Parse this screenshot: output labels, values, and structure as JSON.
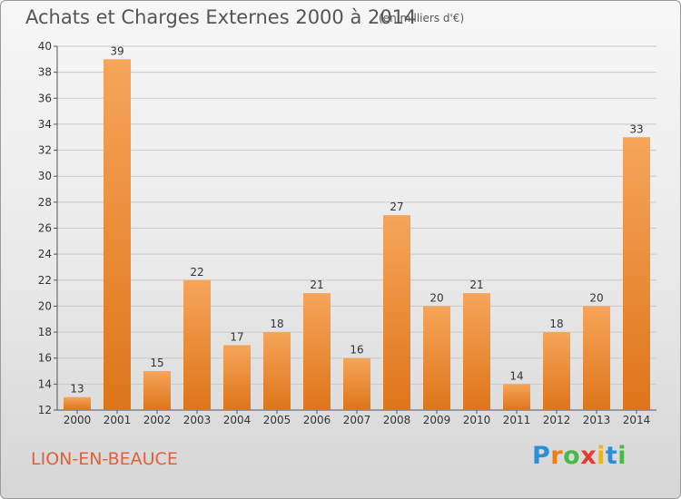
{
  "title": "Achats et Charges Externes 2000 à 2014",
  "subtitle": "(en milliers d'€)",
  "commune": "LION-EN-BEAUCE",
  "logo": {
    "letters": [
      "P",
      "r",
      "o",
      "x",
      "i",
      "t",
      "i"
    ],
    "colors": [
      "#2a8fd8",
      "#f07d1a",
      "#4cb848",
      "#e63a2e",
      "#f2b705",
      "#2a8fd8",
      "#4cb848"
    ]
  },
  "colors": {
    "bar_top": "#f6a55a",
    "bar_bottom": "#de7519",
    "title_text": "#555555",
    "commune_text": "#e0603a"
  },
  "chart_data": {
    "type": "bar",
    "title": "Achats et Charges Externes 2000 à 2014",
    "subtitle": "(en milliers d'€)",
    "categories": [
      "2000",
      "2001",
      "2002",
      "2003",
      "2004",
      "2005",
      "2006",
      "2007",
      "2008",
      "2009",
      "2010",
      "2011",
      "2012",
      "2013",
      "2014"
    ],
    "values": [
      13,
      39,
      15,
      22,
      17,
      18,
      21,
      16,
      27,
      20,
      21,
      14,
      18,
      20,
      33
    ],
    "ylim": [
      12,
      40
    ],
    "yticks": [
      12,
      14,
      16,
      18,
      20,
      22,
      24,
      26,
      28,
      30,
      32,
      34,
      36,
      38,
      40
    ],
    "grid": true,
    "legend": "none"
  }
}
